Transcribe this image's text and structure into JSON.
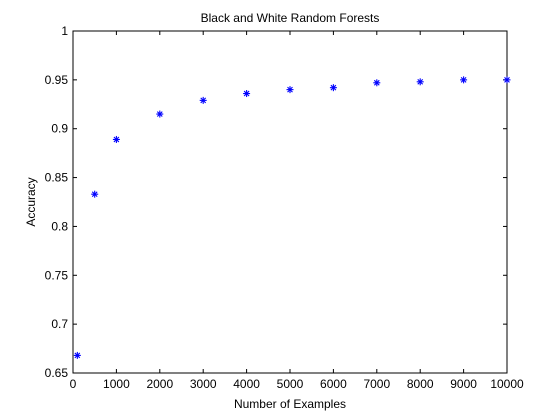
{
  "chart_data": {
    "type": "scatter",
    "title": "Black and White Random Forests",
    "xlabel": "Number of Examples",
    "ylabel": "Accuracy",
    "xlim": [
      0,
      10000
    ],
    "ylim": [
      0.65,
      1
    ],
    "xticks": [
      0,
      1000,
      2000,
      3000,
      4000,
      5000,
      6000,
      7000,
      8000,
      9000,
      10000
    ],
    "yticks": [
      0.65,
      0.7,
      0.75,
      0.8,
      0.85,
      0.9,
      0.95,
      1
    ],
    "xtick_labels": [
      "0",
      "1000",
      "2000",
      "3000",
      "4000",
      "5000",
      "6000",
      "7000",
      "8000",
      "9000",
      "10000"
    ],
    "ytick_labels": [
      "0.65",
      "0.7",
      "0.75",
      "0.8",
      "0.85",
      "0.9",
      "0.95",
      "1"
    ],
    "grid": false,
    "marker": "asterisk",
    "marker_color": "#0000ff",
    "x": [
      100,
      500,
      1000,
      2000,
      3000,
      4000,
      5000,
      6000,
      7000,
      8000,
      9000,
      10000
    ],
    "y": [
      0.668,
      0.833,
      0.889,
      0.915,
      0.929,
      0.936,
      0.94,
      0.942,
      0.947,
      0.948,
      0.95,
      0.95
    ]
  }
}
